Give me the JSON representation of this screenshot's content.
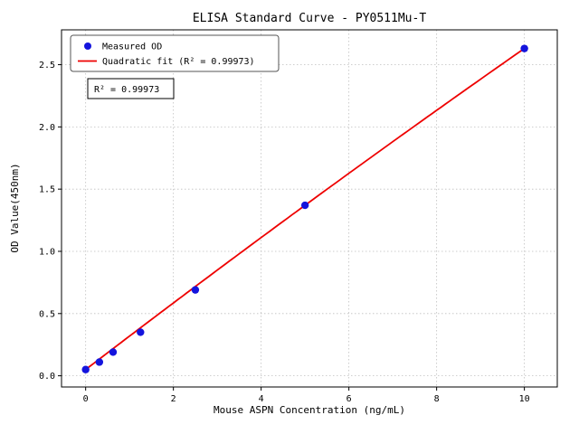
{
  "chart_data": {
    "type": "scatter",
    "title": "ELISA Standard Curve - PY0511Mu-T",
    "xlabel": "Mouse ASPN Concentration (ng/mL)",
    "ylabel": "OD Value(450nm)",
    "x": [
      0,
      0.313,
      0.625,
      1.25,
      2.5,
      5,
      10
    ],
    "y": [
      0.05,
      0.11,
      0.19,
      0.35,
      0.69,
      1.37,
      2.63
    ],
    "series_label": "Measured OD",
    "fit_label": "Quadratic fit (R² = 0.99973)",
    "annotation": "R² = 0.99973",
    "fit": {
      "a": -0.0012,
      "b": 0.27,
      "c": 0.05
    },
    "fit_range": [
      0,
      10
    ],
    "x_ticks": [
      0,
      2,
      4,
      6,
      8,
      10
    ],
    "y_ticks": [
      "0.0",
      "0.5",
      "1.0",
      "1.5",
      "2.0",
      "2.5"
    ],
    "xlim": [
      -0.55,
      10.75
    ],
    "ylim": [
      -0.09,
      2.78
    ],
    "grid": true,
    "legend_position": "upper left",
    "colors": {
      "point": "#1414dd",
      "line": "#ee0000",
      "grid": "#bfbfbf",
      "frame": "#000000"
    }
  }
}
